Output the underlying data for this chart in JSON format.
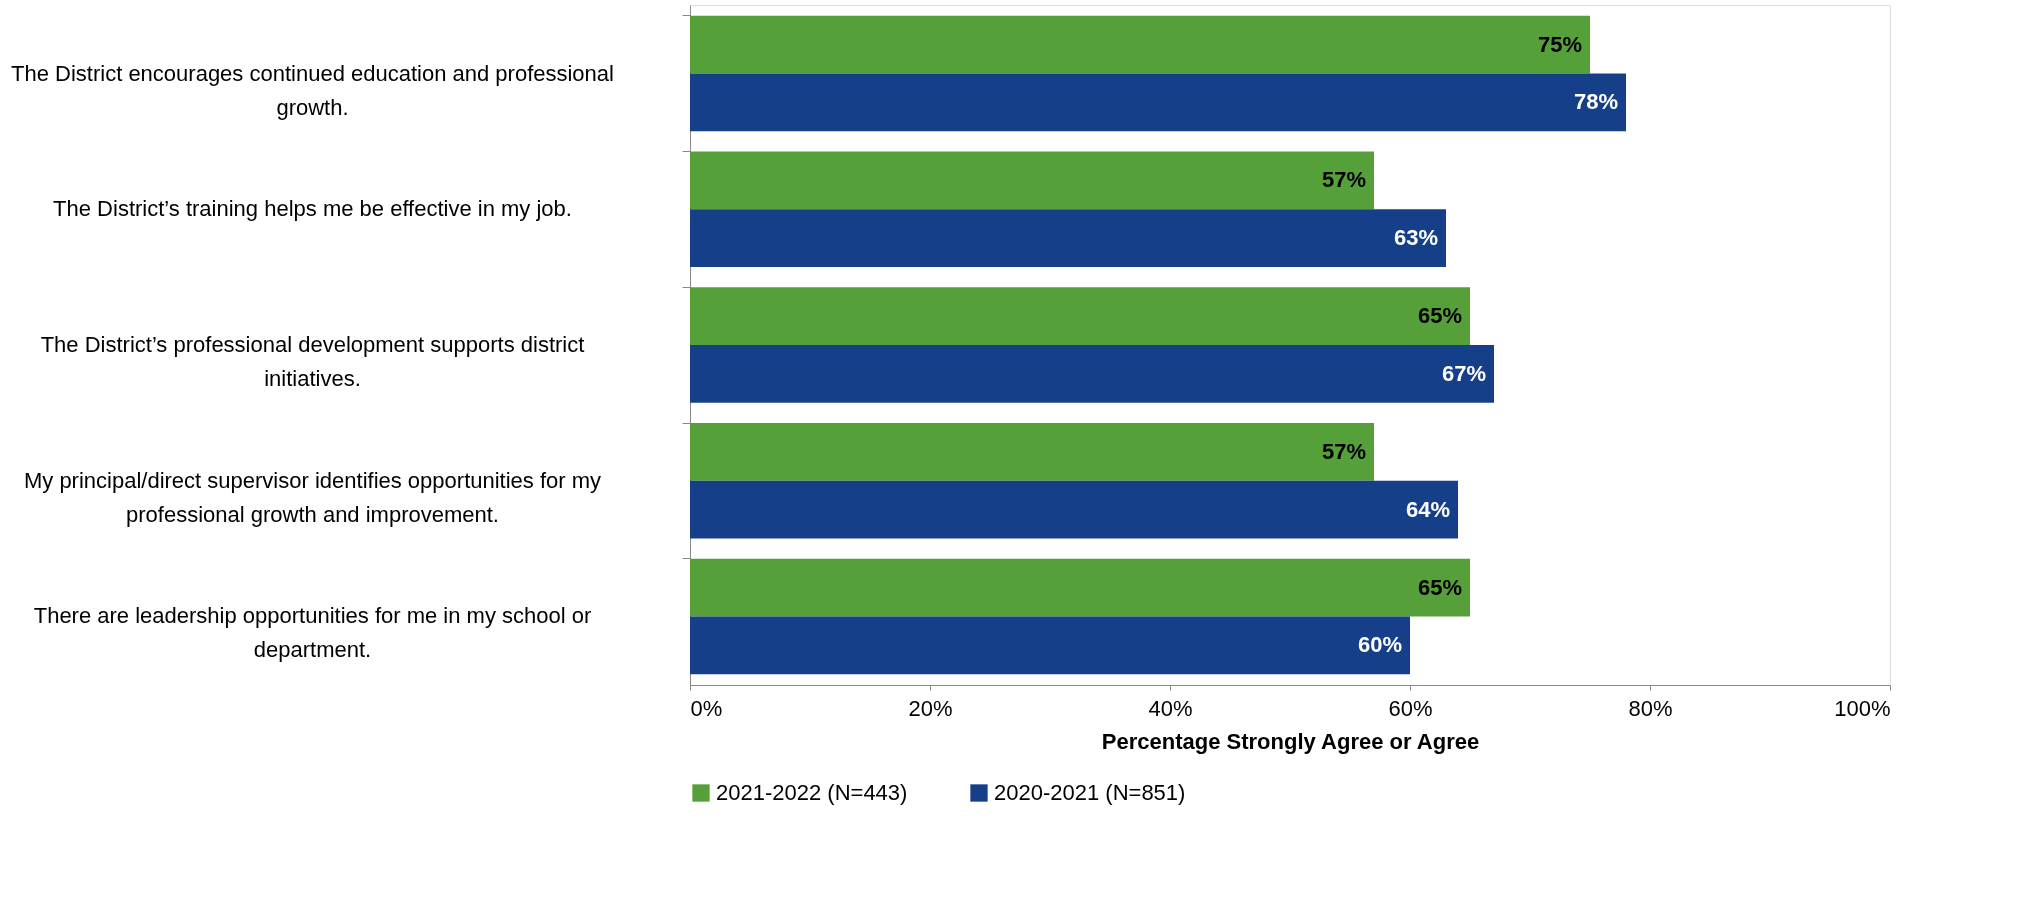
{
  "chart_data": {
    "type": "bar",
    "orientation": "horizontal",
    "xlabel": "Percentage Strongly Agree or Agree",
    "categories": [
      "The District encourages continued education and professional growth.",
      "The District’s training helps me be effective in my job.",
      "The District’s professional development supports district initiatives.",
      "My principal/direct supervisor identifies opportunities for my professional growth and improvement.",
      "There are leadership opportunities for me in my school or department."
    ],
    "series": [
      {
        "name": "2021-2022 (N=443)",
        "color": "#56a03a",
        "values": [
          75,
          57,
          65,
          57,
          65
        ],
        "value_labels": [
          "75%",
          "57%",
          "65%",
          "57%",
          "65%"
        ]
      },
      {
        "name": "2020-2021 (N=851)",
        "color": "#163f8a",
        "values": [
          78,
          63,
          67,
          64,
          60
        ],
        "value_labels": [
          "78%",
          "63%",
          "67%",
          "64%",
          "60%"
        ]
      }
    ],
    "xlim": [
      0,
      100
    ],
    "xticks": [
      {
        "value": 0,
        "label": "0%"
      },
      {
        "value": 20,
        "label": "20%"
      },
      {
        "value": 40,
        "label": "40%"
      },
      {
        "value": 60,
        "label": "60%"
      },
      {
        "value": 80,
        "label": "80%"
      },
      {
        "value": 100,
        "label": "100%"
      }
    ],
    "grid": false,
    "legend": "bottom"
  }
}
